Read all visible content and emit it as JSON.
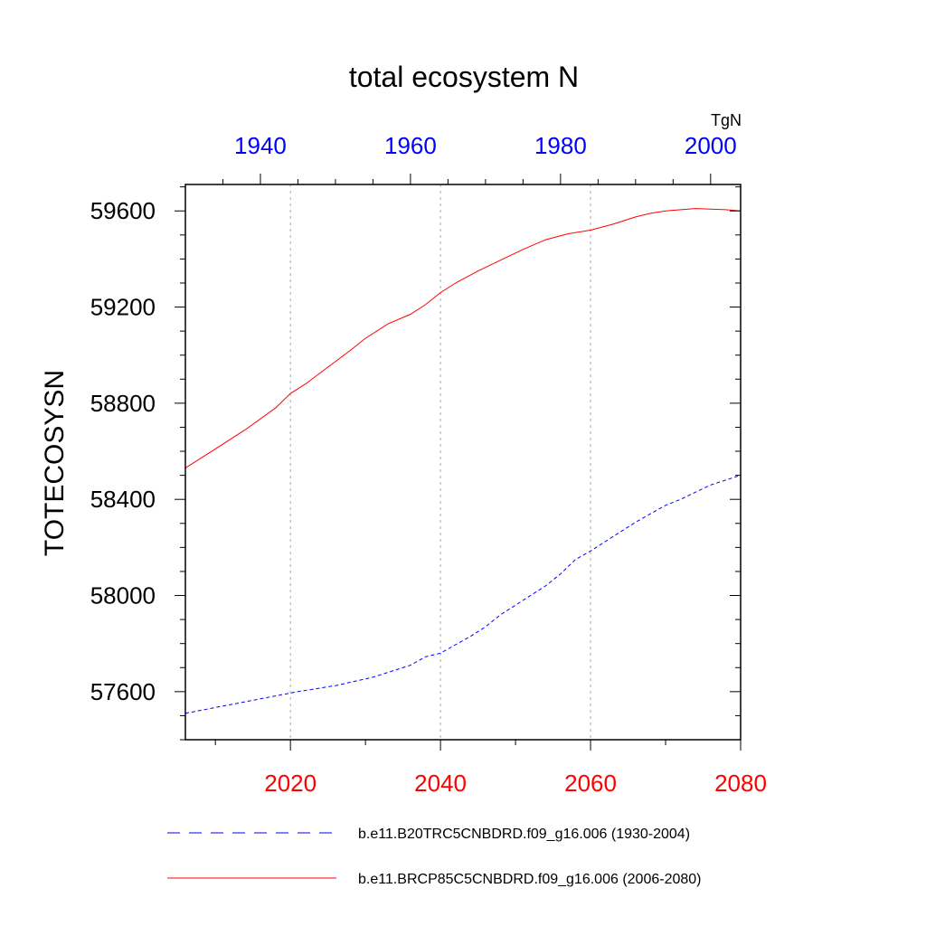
{
  "chart_data": {
    "type": "line",
    "title": "total ecosystem N",
    "ylabel": "TOTECOSYSN",
    "units": "TgN",
    "ylim": [
      57400,
      59710
    ],
    "yticks": [
      57600,
      58000,
      58400,
      58800,
      59200,
      59600
    ],
    "bottom_axis": {
      "xlim": [
        2006,
        2080
      ],
      "ticks": [
        2020,
        2040,
        2060,
        2080
      ],
      "color": "#ff0000"
    },
    "top_axis": {
      "xlim": [
        1930,
        2004
      ],
      "ticks": [
        1940,
        1960,
        1980,
        2000
      ],
      "color": "#0000ff"
    },
    "grid": "vertical dotted at bottom-axis ticks",
    "series": [
      {
        "name": "b.e11.B20TRC5CNBDRD.f09_g16.006 (1930-2004)",
        "axis": "top",
        "color": "#0000ff",
        "style": "dashed",
        "x": [
          1930,
          1935,
          1940,
          1945,
          1950,
          1955,
          1960,
          1962,
          1964,
          1966,
          1968,
          1970,
          1972,
          1974,
          1976,
          1978,
          1980,
          1982,
          1984,
          1986,
          1988,
          1990,
          1992,
          1994,
          1996,
          1998,
          2000,
          2002,
          2004
        ],
        "y": [
          57510,
          57540,
          57570,
          57600,
          57625,
          57660,
          57710,
          57745,
          57760,
          57795,
          57830,
          57870,
          57920,
          57960,
          58000,
          58040,
          58090,
          58150,
          58185,
          58225,
          58265,
          58305,
          58340,
          58375,
          58400,
          58430,
          58460,
          58480,
          58500
        ]
      },
      {
        "name": "b.e11.BRCP85C5CNBDRD.f09_g16.006 (2006-2080)",
        "axis": "bottom",
        "color": "#ff0000",
        "style": "solid",
        "x": [
          2006,
          2010,
          2014,
          2018,
          2020,
          2022,
          2025,
          2028,
          2030,
          2033,
          2036,
          2038,
          2040,
          2042,
          2045,
          2048,
          2051,
          2054,
          2057,
          2060,
          2063,
          2066,
          2068,
          2070,
          2072,
          2074,
          2078,
          2080
        ],
        "y": [
          58530,
          58610,
          58690,
          58780,
          58840,
          58880,
          58950,
          59020,
          59070,
          59130,
          59170,
          59210,
          59260,
          59300,
          59350,
          59395,
          59440,
          59480,
          59505,
          59520,
          59545,
          59575,
          59590,
          59600,
          59605,
          59610,
          59605,
          59600
        ]
      }
    ]
  }
}
